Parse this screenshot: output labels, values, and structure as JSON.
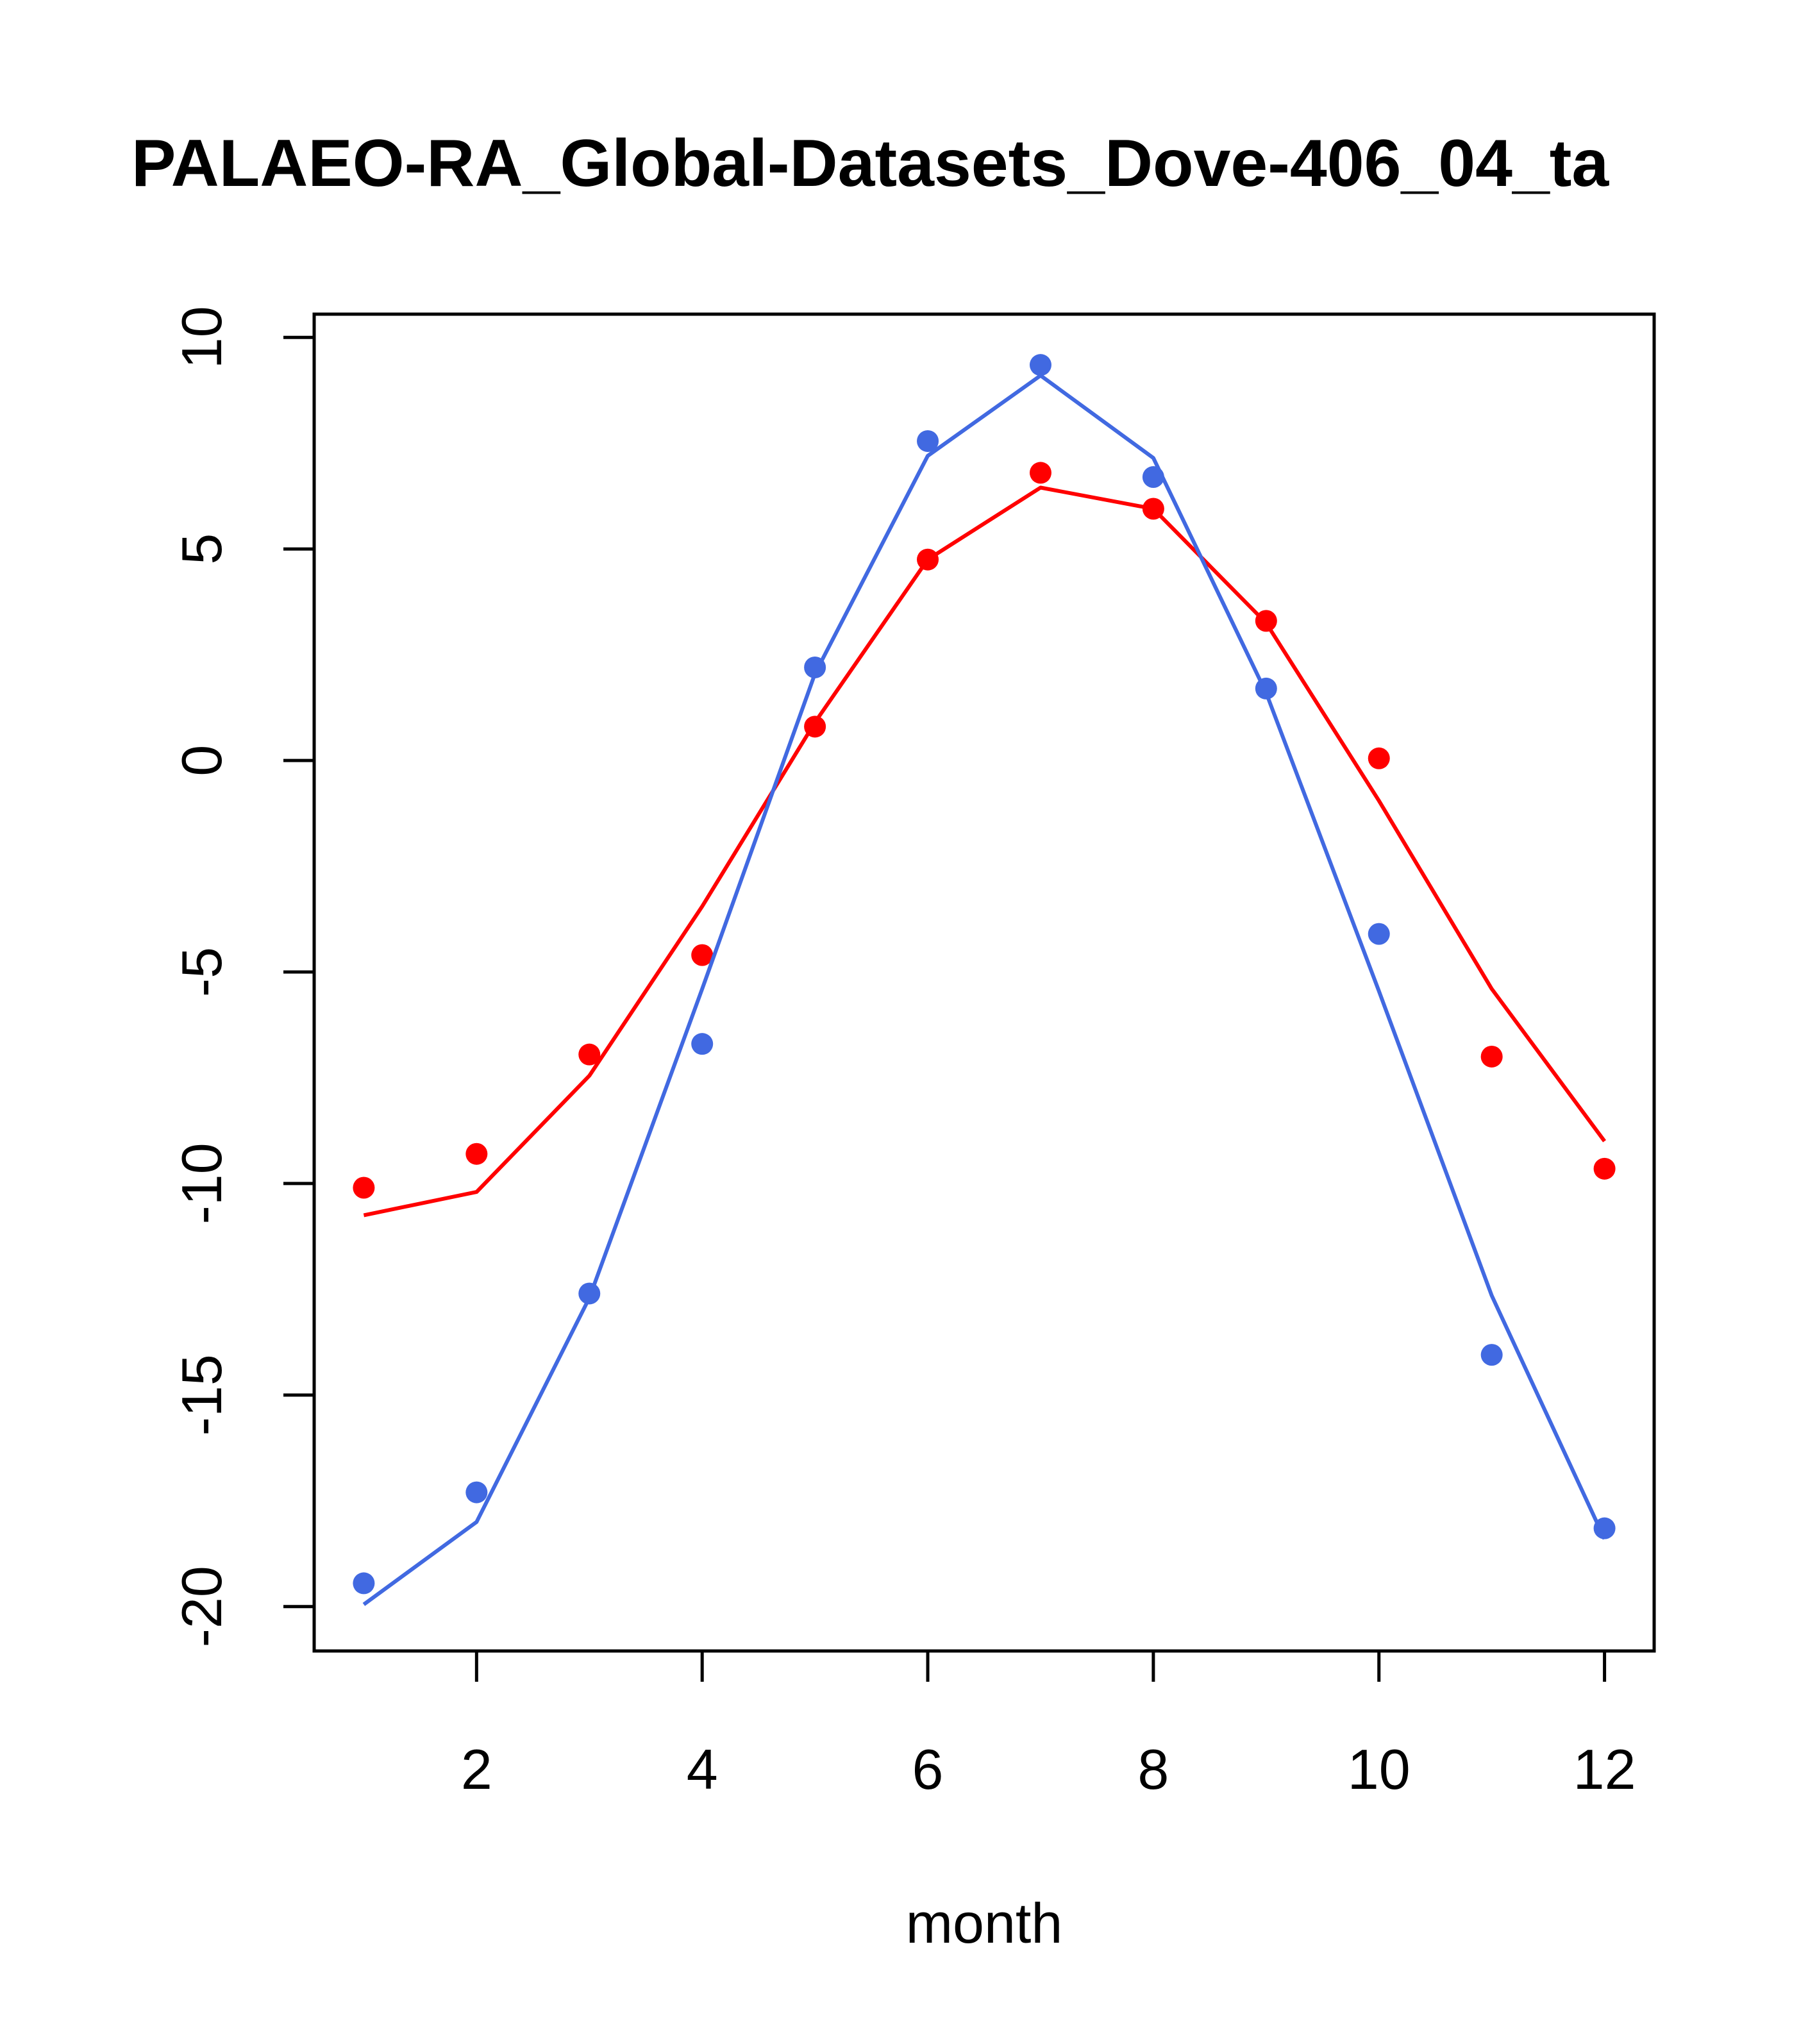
{
  "chart_data": {
    "type": "line",
    "title": "PALAEO-RA_Global-Datasets_Dove-406_04_ta",
    "xlabel": "month",
    "ylabel": "",
    "xlim": [
      0.56,
      12.44
    ],
    "ylim": [
      -21.05,
      10.55
    ],
    "x_ticks": [
      2,
      4,
      6,
      8,
      10,
      12
    ],
    "x_tick_labels": [
      "2",
      "4",
      "6",
      "8",
      "10",
      "12"
    ],
    "y_ticks": [
      -20,
      -15,
      -10,
      -5,
      0,
      5,
      10
    ],
    "y_tick_labels": [
      "-20",
      "-15",
      "-10",
      "-5",
      "0",
      "5",
      "10"
    ],
    "grid": false,
    "x": [
      1,
      2,
      3,
      4,
      5,
      6,
      7,
      8,
      9,
      10,
      11,
      12
    ],
    "series": [
      {
        "name": "red-line",
        "color": "#ff0000",
        "kind": "line",
        "values": [
          -10.75,
          -10.2,
          -7.45,
          -3.45,
          0.9,
          4.75,
          6.45,
          5.95,
          3.25,
          -0.95,
          -5.4,
          -9.0
        ]
      },
      {
        "name": "red-points",
        "color": "#ff0000",
        "kind": "points",
        "values": [
          -10.1,
          -9.3,
          -6.95,
          -4.6,
          0.8,
          4.75,
          6.8,
          5.95,
          3.3,
          0.05,
          -7.0,
          -9.65
        ]
      },
      {
        "name": "blue-line",
        "color": "#4169e1",
        "kind": "line",
        "values": [
          -19.95,
          -18.0,
          -12.7,
          -5.4,
          2.05,
          7.2,
          9.1,
          7.15,
          1.6,
          -5.45,
          -12.65,
          -18.4
        ]
      },
      {
        "name": "blue-points",
        "color": "#4169e1",
        "kind": "points",
        "values": [
          -19.45,
          -17.3,
          -12.6,
          -6.7,
          2.2,
          7.55,
          9.35,
          6.7,
          1.7,
          -4.1,
          -14.05,
          -18.15
        ]
      }
    ]
  }
}
